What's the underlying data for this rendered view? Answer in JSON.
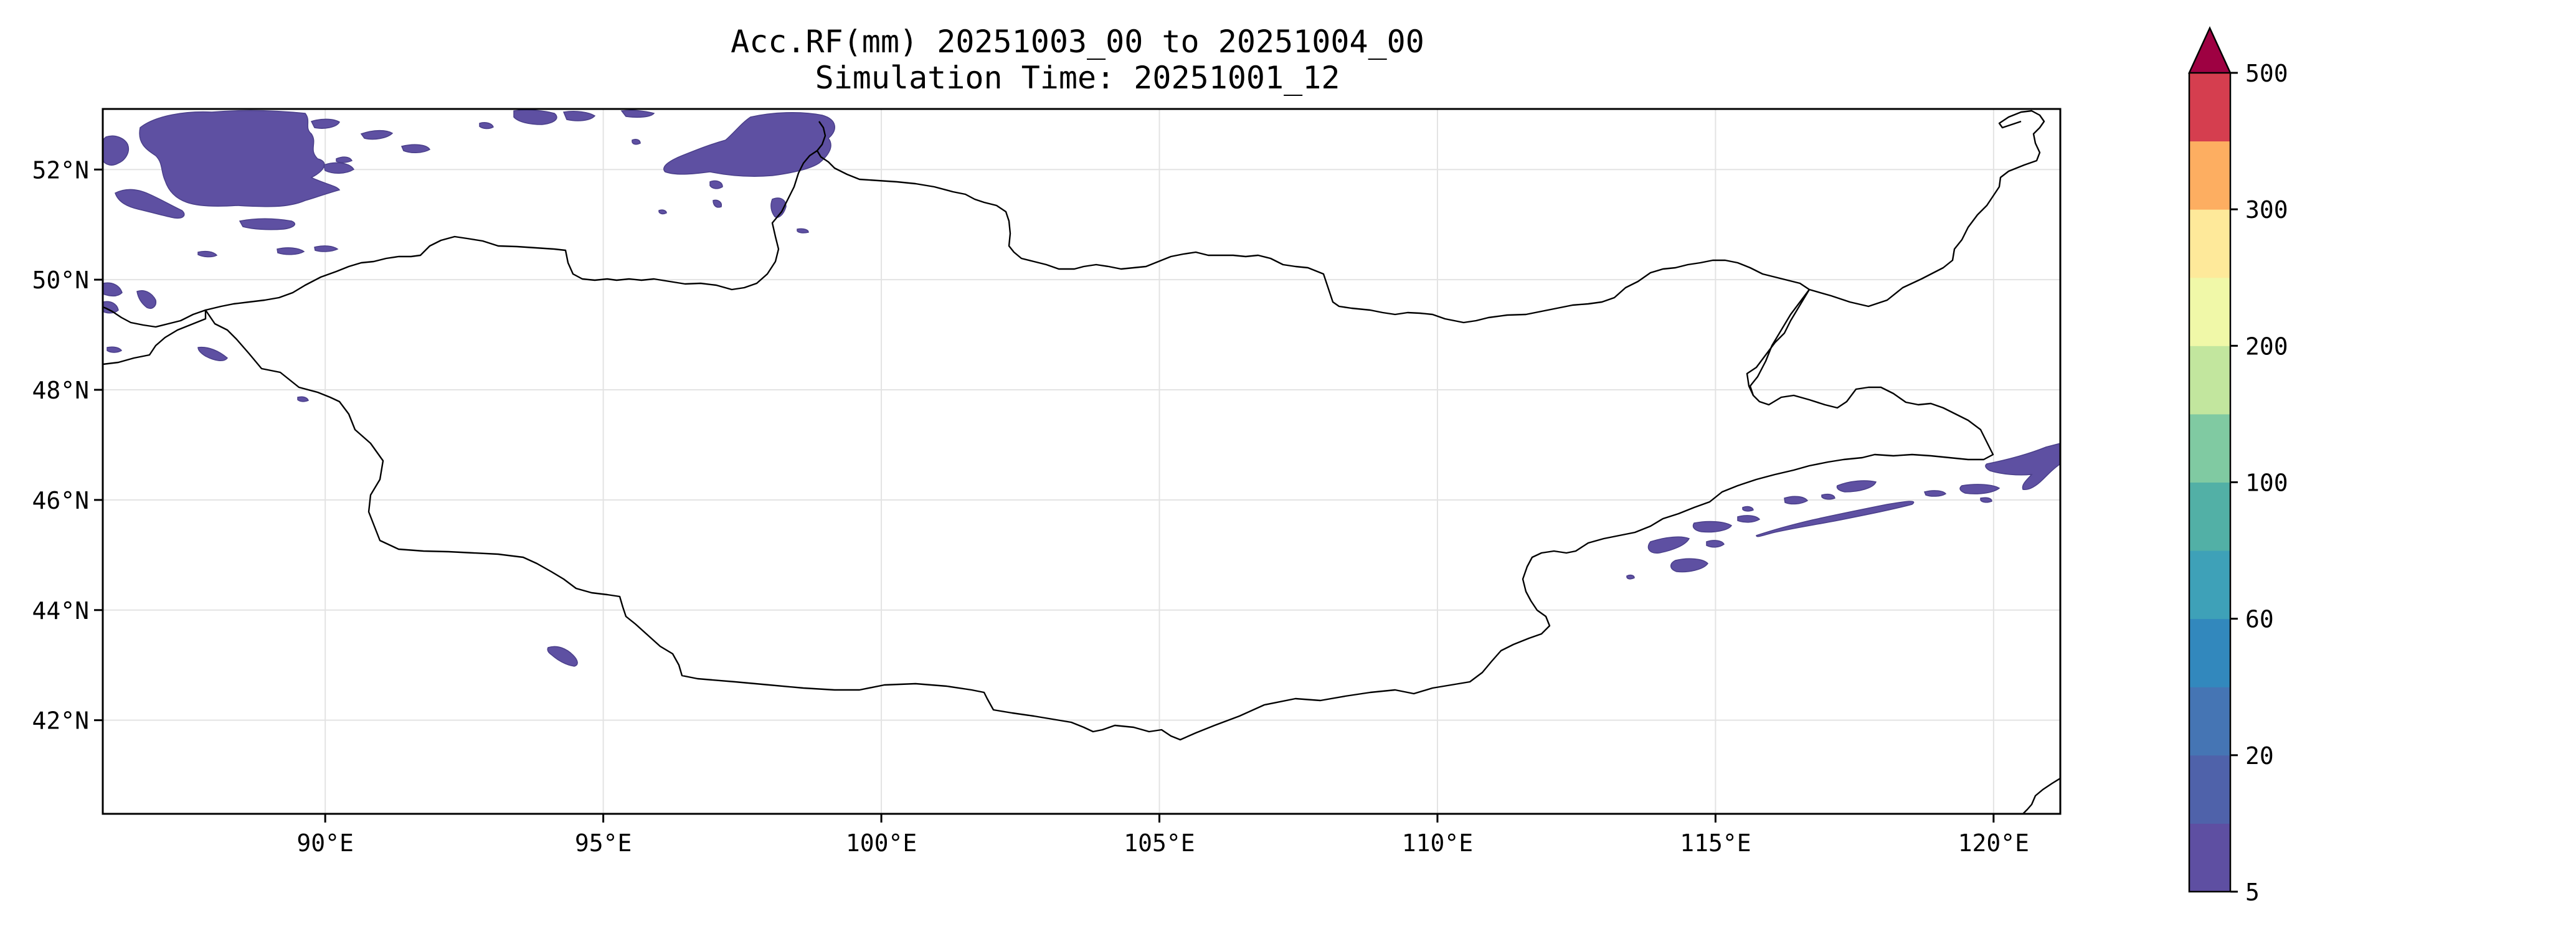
{
  "title": {
    "line1": "Acc.RF(mm) 20251003_00 to 20251004_00",
    "line2": "Simulation Time: 20251001_12"
  },
  "map": {
    "lon_range": [
      86,
      121.2
    ],
    "lat_range": [
      40.3,
      53.1
    ],
    "lat_ticks": [
      {
        "value": 42,
        "label": "42°N"
      },
      {
        "value": 44,
        "label": "44°N"
      },
      {
        "value": 46,
        "label": "46°N"
      },
      {
        "value": 48,
        "label": "48°N"
      },
      {
        "value": 50,
        "label": "50°N"
      },
      {
        "value": 52,
        "label": "52°N"
      }
    ],
    "lon_ticks": [
      {
        "value": 90,
        "label": "90°E"
      },
      {
        "value": 95,
        "label": "95°E"
      },
      {
        "value": 100,
        "label": "100°E"
      },
      {
        "value": 105,
        "label": "105°E"
      },
      {
        "value": 110,
        "label": "110°E"
      },
      {
        "value": 115,
        "label": "115°E"
      },
      {
        "value": 120,
        "label": "120°E"
      }
    ],
    "gridlines": true,
    "rain_color": "#5e50a2",
    "border_color": "#000000"
  },
  "colorbar": {
    "levels": [
      5,
      10,
      20,
      40,
      60,
      80,
      100,
      150,
      200,
      250,
      300,
      400,
      500
    ],
    "colors": [
      "#5e4fa2",
      "#4f62aa",
      "#4575b4",
      "#3288bd",
      "#3ea1b8",
      "#52b0a6",
      "#80caa2",
      "#c2e69e",
      "#f0f8a8",
      "#fee99a",
      "#fdae61",
      "#d53e4f"
    ],
    "extend_color": "#9e0142",
    "tick_labels": [
      {
        "value": 5,
        "label": "5"
      },
      {
        "value": 20,
        "label": "20"
      },
      {
        "value": 60,
        "label": "60"
      },
      {
        "value": 100,
        "label": "100"
      },
      {
        "value": 200,
        "label": "200"
      },
      {
        "value": 300,
        "label": "300"
      },
      {
        "value": 500,
        "label": "500"
      }
    ]
  }
}
